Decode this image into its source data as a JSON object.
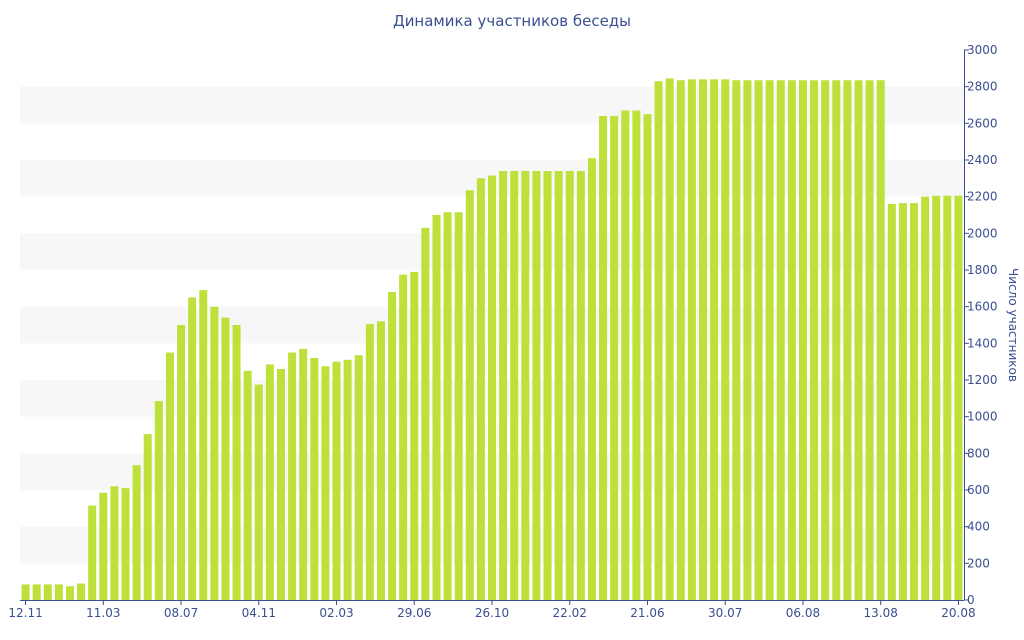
{
  "chart_data": {
    "type": "bar",
    "title": "Динамика участников беседы",
    "xlabel": "",
    "ylabel": "Число участников",
    "ylim": [
      0,
      3000
    ],
    "yticks": [
      0,
      200,
      400,
      600,
      800,
      1000,
      1200,
      1400,
      1600,
      1800,
      2000,
      2200,
      2400,
      2600,
      2800,
      3000
    ],
    "grid": "alternating horizontal bands",
    "y_axis_side": "right",
    "bar_color": "#bde03a",
    "band_color": "#f7f7f7",
    "text_color": "#3a4f8f",
    "tick_labels": [
      {
        "index": 0,
        "label": "12.11"
      },
      {
        "index": 7,
        "label": "11.03"
      },
      {
        "index": 14,
        "label": "08.07"
      },
      {
        "index": 21,
        "label": "04.11"
      },
      {
        "index": 28,
        "label": "02.03"
      },
      {
        "index": 35,
        "label": "29.06"
      },
      {
        "index": 42,
        "label": "26.10"
      },
      {
        "index": 49,
        "label": "22.02"
      },
      {
        "index": 56,
        "label": "21.06"
      },
      {
        "index": 63,
        "label": "30.07"
      },
      {
        "index": 70,
        "label": "06.08"
      },
      {
        "index": 77,
        "label": "13.08"
      },
      {
        "index": 84,
        "label": "20.08"
      }
    ],
    "values": [
      85,
      85,
      85,
      85,
      75,
      90,
      515,
      585,
      620,
      610,
      735,
      905,
      1085,
      1350,
      1500,
      1650,
      1690,
      1600,
      1540,
      1500,
      1250,
      1175,
      1285,
      1260,
      1350,
      1370,
      1320,
      1275,
      1300,
      1310,
      1335,
      1505,
      1520,
      1680,
      1775,
      1790,
      2030,
      2100,
      2115,
      2115,
      2235,
      2300,
      2315,
      2340,
      2340,
      2340,
      2340,
      2340,
      2340,
      2340,
      2340,
      2410,
      2640,
      2640,
      2670,
      2670,
      2650,
      2830,
      2845,
      2835,
      2840,
      2840,
      2840,
      2840,
      2835,
      2835,
      2835,
      2835,
      2835,
      2835,
      2835,
      2835,
      2835,
      2835,
      2835,
      2835,
      2835,
      2835,
      2160,
      2165,
      2165,
      2200,
      2205,
      2205,
      2205
    ]
  }
}
